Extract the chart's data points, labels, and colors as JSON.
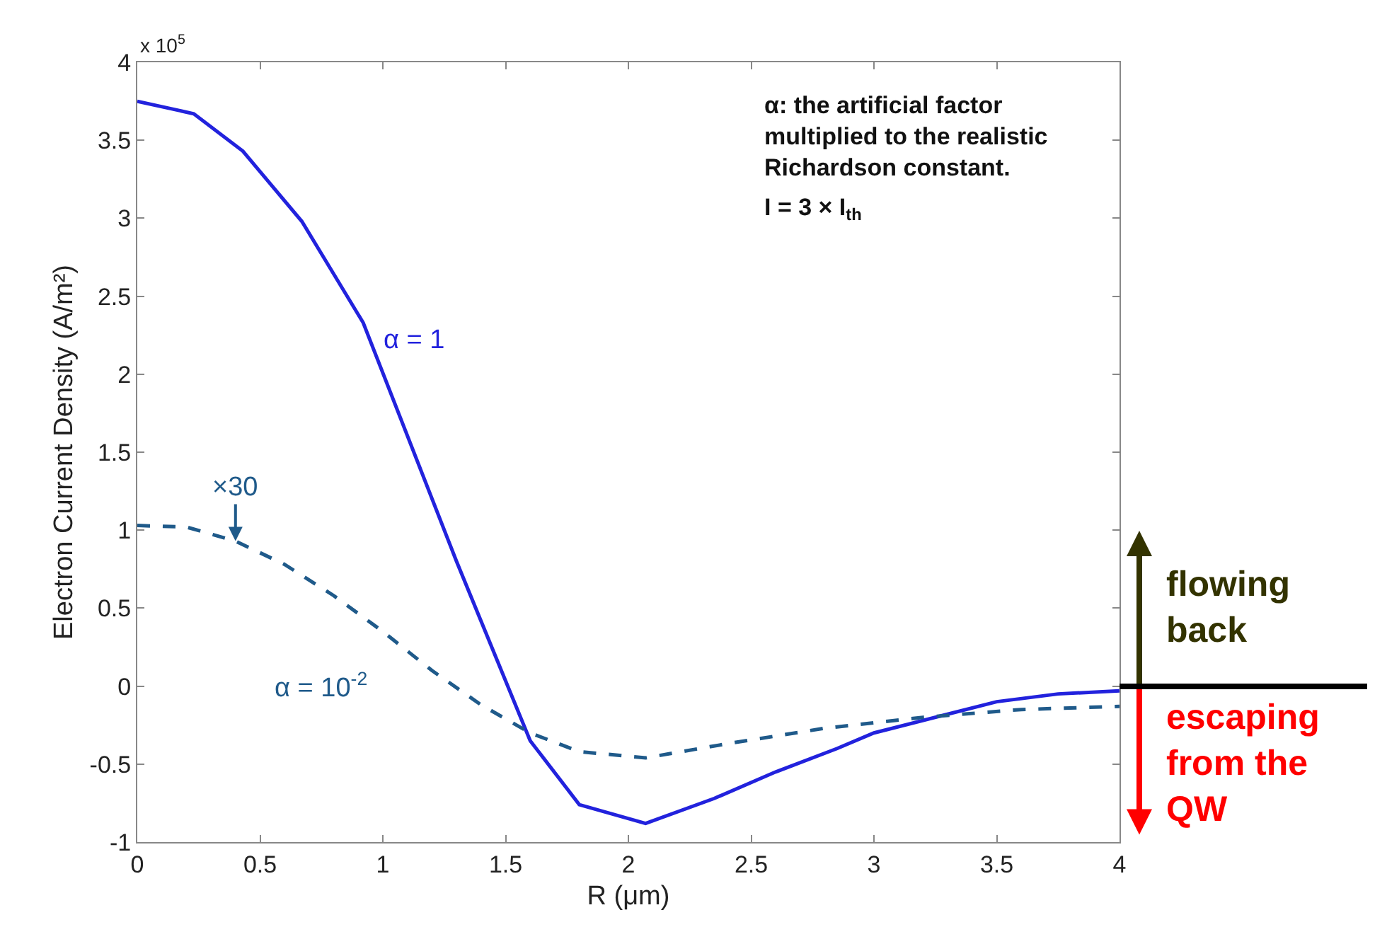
{
  "chart_data": {
    "type": "line",
    "xlabel": "R (μm)",
    "ylabel": "Electron Current Density (A/m²)",
    "xlim": [
      0,
      4
    ],
    "xticks": [
      0,
      0.5,
      1,
      1.5,
      2,
      2.5,
      3,
      3.5,
      4
    ],
    "ylim": [
      -1,
      4
    ],
    "yticks": [
      -1,
      -0.5,
      0,
      0.5,
      1,
      1.5,
      2,
      2.5,
      3,
      3.5,
      4
    ],
    "grid": false,
    "legend": false,
    "marker": "none",
    "series": [
      {
        "name": "α = 1",
        "color": "#2222dd",
        "line_style": "solid",
        "x": [
          0,
          0.23,
          0.43,
          0.67,
          0.92,
          1.3,
          1.6,
          1.8,
          2.07,
          2.35,
          2.6,
          2.85,
          3.0,
          3.3,
          3.5,
          3.75,
          4
        ],
        "values": [
          3.75,
          3.67,
          3.43,
          2.98,
          2.33,
          0.8,
          -0.35,
          -0.76,
          -0.88,
          -0.72,
          -0.55,
          -0.4,
          -0.3,
          -0.18,
          -0.1,
          -0.05,
          -0.03
        ]
      },
      {
        "name": "α = 10$^{-2}$",
        "color": "#1f5a8a",
        "line_style": "dashed",
        "x": [
          0,
          0.2,
          0.4,
          0.6,
          0.8,
          1.0,
          1.2,
          1.4,
          1.6,
          1.8,
          2.07,
          2.4,
          2.8,
          3.2,
          3.6,
          4
        ],
        "values": [
          1.03,
          1.02,
          0.93,
          0.78,
          0.58,
          0.35,
          0.1,
          -0.12,
          -0.3,
          -0.42,
          -0.46,
          -0.37,
          -0.27,
          -0.2,
          -0.15,
          -0.13
        ]
      }
    ],
    "annotations": [
      "x 10$^{5}$",
      "α: the artificial factor\nmultiplied to the realistic\nRichardson constant.",
      "I = 3 × I$_{th}$",
      {
        "text": "×30",
        "x": 0.4,
        "y": 0.93
      },
      "flowing back",
      "escaping from the QW"
    ]
  }
}
